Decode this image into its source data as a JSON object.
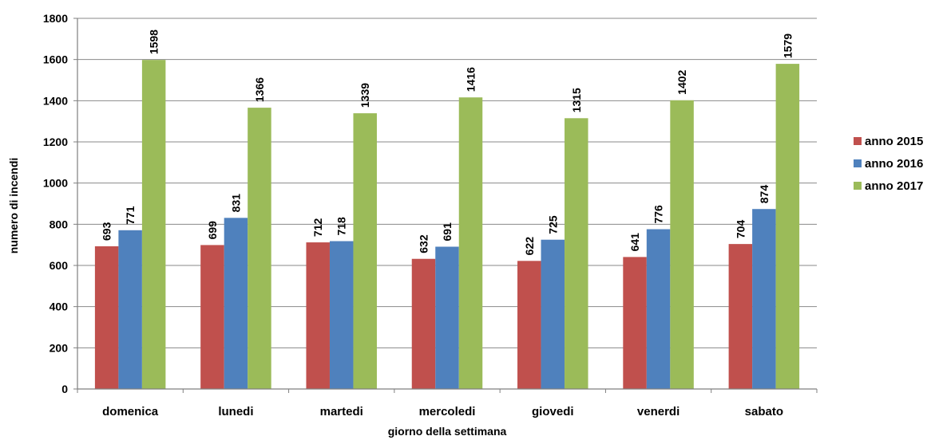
{
  "chart_data": {
    "type": "bar",
    "categories": [
      "domenica",
      "lunedi",
      "martedi",
      "mercoledi",
      "giovedi",
      "venerdi",
      "sabato"
    ],
    "series": [
      {
        "name": "anno 2015",
        "color": "#c0504d",
        "values": [
          693,
          699,
          712,
          632,
          622,
          641,
          704
        ]
      },
      {
        "name": "anno 2016",
        "color": "#4f81bd",
        "values": [
          771,
          831,
          718,
          691,
          725,
          776,
          874
        ]
      },
      {
        "name": "anno 2017",
        "color": "#9bbb59",
        "values": [
          1598,
          1366,
          1339,
          1416,
          1315,
          1402,
          1579
        ]
      }
    ],
    "xlabel": "giorno della settimana",
    "ylabel": "numero di incendi",
    "ylim": [
      0,
      1800
    ],
    "yticks": [
      0,
      200,
      400,
      600,
      800,
      1000,
      1200,
      1400,
      1600,
      1800
    ],
    "grid": true,
    "legend": "right",
    "data_labels": true
  }
}
